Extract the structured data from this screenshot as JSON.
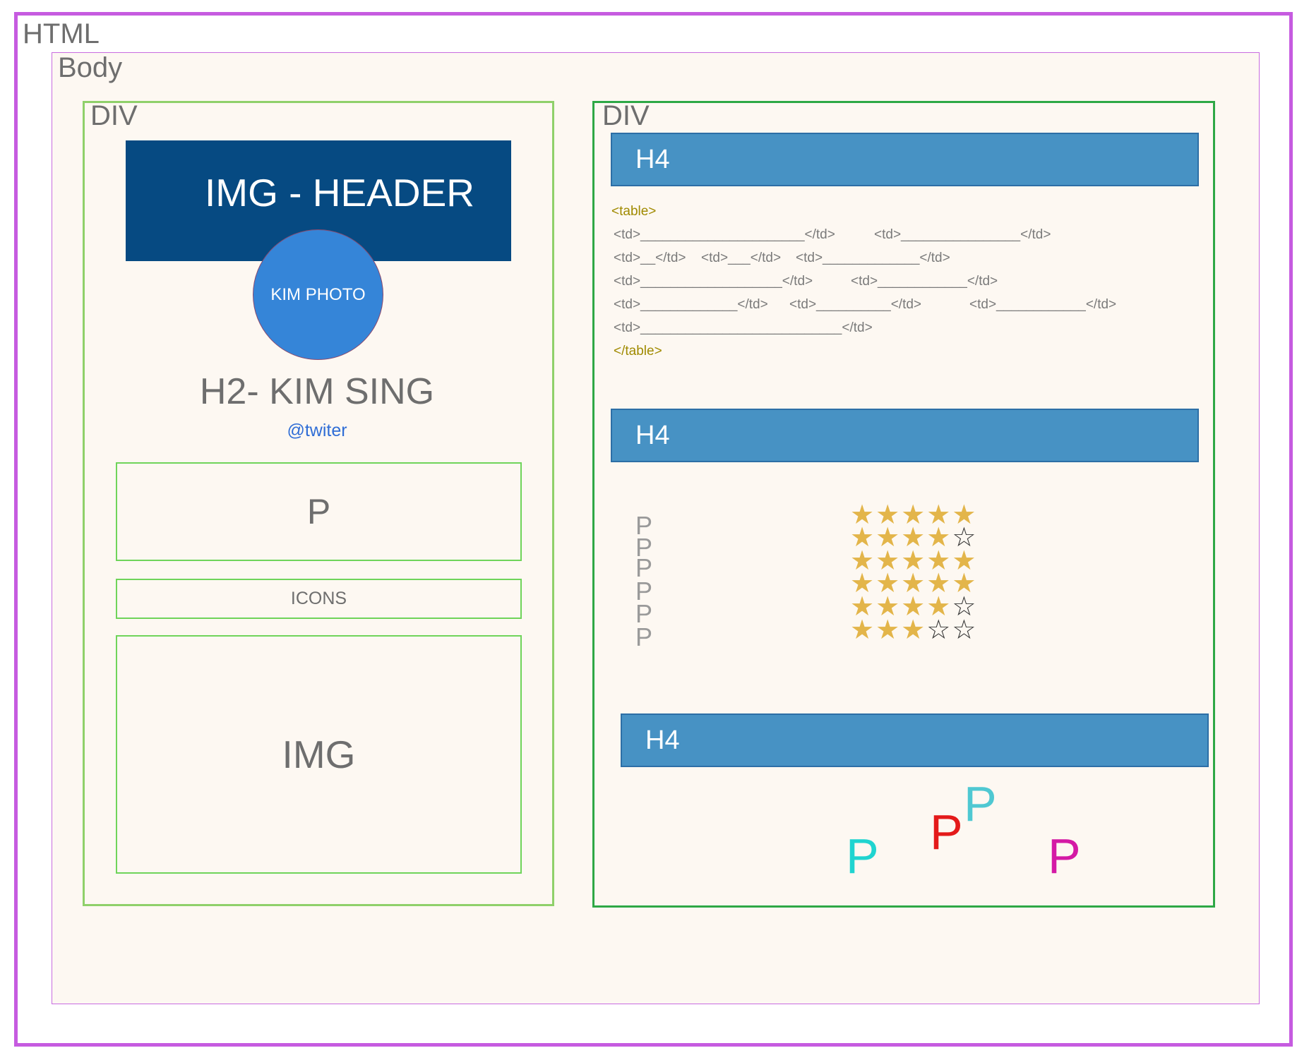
{
  "outer": {
    "html_label": "HTML",
    "body_label": "Body"
  },
  "left_div": {
    "label": "DIV",
    "img_header": "IMG - HEADER",
    "photo": "KIM PHOTO",
    "name_heading": "H2- KIM SING",
    "twitter": "@twiter",
    "p_box": "P",
    "icons_box": "ICONS",
    "img_box": "IMG"
  },
  "right_div": {
    "label": "DIV",
    "headings": [
      "H4",
      "H4",
      "H4"
    ],
    "table_code": {
      "open_tag": "<table>",
      "rows": [
        [
          "<td>______________________</td>",
          "<td>________________</td>"
        ],
        [
          "<td>__</td>",
          "<td>___</td>",
          "<td>_____________</td>"
        ],
        [
          "<td>___________________</td>",
          "<td>____________</td>"
        ],
        [
          "<td>_____________</td>",
          "<td>__________</td>",
          "<td>____________</td>"
        ],
        [
          "<td>___________________________</td>"
        ]
      ],
      "close_tag": "</table>"
    },
    "p_stack": [
      "P",
      "P",
      "P",
      "P",
      "P",
      "P"
    ],
    "star_ratings": [
      5,
      4,
      5,
      5,
      4,
      3
    ],
    "star_max": 5,
    "star_colors": {
      "full": "#e3b54a",
      "empty": "#333333"
    },
    "colored_ps": [
      {
        "text": "P",
        "color": "#20d4d0"
      },
      {
        "text": "P",
        "color": "#e41a1a"
      },
      {
        "text": "P",
        "color": "#4fc8d2"
      },
      {
        "text": "P",
        "color": "#d41aa5"
      }
    ]
  }
}
